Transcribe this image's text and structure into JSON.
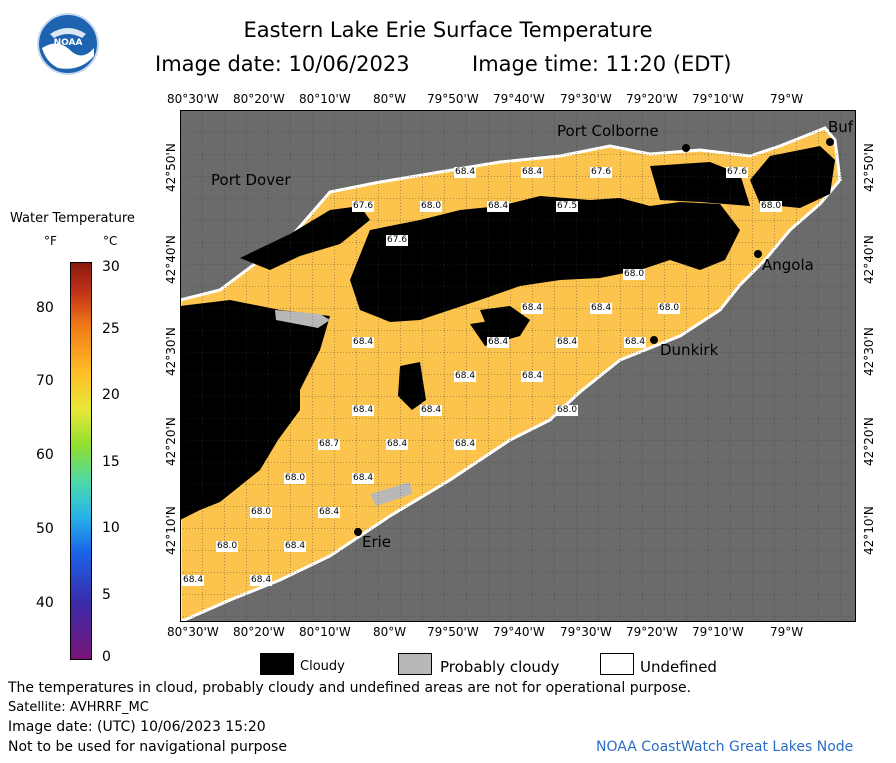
{
  "header": {
    "title": "Eastern Lake Erie Surface Temperature",
    "image_date_line": "Image date: 10/06/2023",
    "image_time_line": "Image time: 11:20 (EDT)"
  },
  "colorbar": {
    "title": "Water Temperature",
    "unit_f": "°F",
    "unit_c": "°C",
    "f_ticks": [
      "80",
      "70",
      "60",
      "50",
      "40"
    ],
    "c_ticks": [
      "30",
      "25",
      "20",
      "15",
      "10",
      "5",
      "0"
    ]
  },
  "axes": {
    "lon_ticks": [
      "80°30'W",
      "80°20'W",
      "80°10'W",
      "80°W",
      "79°50'W",
      "79°40'W",
      "79°30'W",
      "79°20'W",
      "79°10'W",
      "79°W"
    ],
    "lat_ticks": [
      "42°50'N",
      "42°40'N",
      "42°30'N",
      "42°20'N",
      "42°10'N"
    ]
  },
  "map": {
    "land_color": "#6b6b6b",
    "water_color": "#fcc44c",
    "cloud_color": "#000000",
    "probably_cloudy_color": "#b8b8b8",
    "cities": [
      {
        "name": "Port Colborne"
      },
      {
        "name": "Buf"
      },
      {
        "name": "Port Dover"
      },
      {
        "name": "Angola"
      },
      {
        "name": "Dunkirk"
      },
      {
        "name": "Erie"
      }
    ],
    "temperature_labels": [
      "68.4",
      "68.4",
      "67.6",
      "67.6",
      "68.0",
      "68.4",
      "67.5",
      "67.6",
      "68.0",
      "67.6",
      "68.0",
      "68.4",
      "68.4",
      "68.4",
      "68.4",
      "68.0",
      "68.4",
      "68.4",
      "68.4",
      "68.4",
      "68.4",
      "68.4",
      "68.0",
      "68.7",
      "68.4",
      "68.4",
      "68.0",
      "68.4",
      "68.0",
      "68.4",
      "68.0",
      "68.4",
      "68.4",
      "68.4"
    ]
  },
  "legend": {
    "cloudy": "Cloudy",
    "probably_cloudy": "Probably cloudy",
    "undefined": "Undefined"
  },
  "footer": {
    "disclaimer": "The temperatures in cloud, probably cloudy and undefined areas are not for operational purpose.",
    "satellite": "Satellite: AVHRRF_MC",
    "utc_date": "Image date: (UTC) 10/06/2023  15:20",
    "navigation": "Not to be used for navigational purpose",
    "credit": "NOAA CoastWatch Great Lakes Node"
  }
}
